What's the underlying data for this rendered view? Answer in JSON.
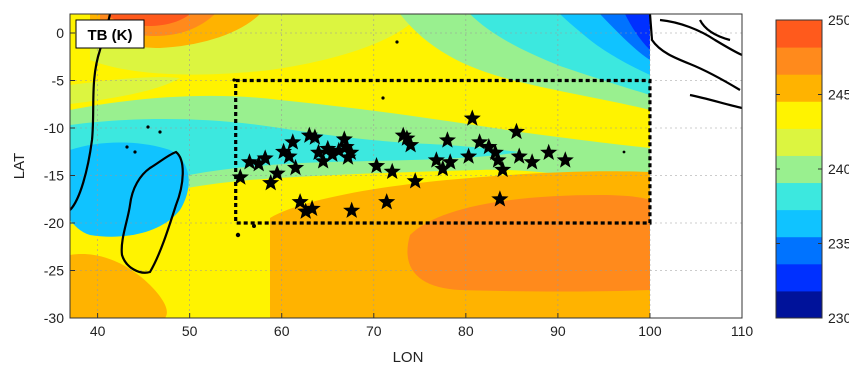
{
  "map": {
    "title_badge": "TB (K)",
    "xlabel": "LON",
    "ylabel": "LAT",
    "xlim": [
      37,
      110
    ],
    "ylim": [
      -30,
      2
    ],
    "x_ticks": [
      40,
      50,
      60,
      70,
      80,
      90,
      100,
      110
    ],
    "y_ticks": [
      0,
      -5,
      -10,
      -15,
      -20,
      -25,
      -30
    ],
    "box_region": {
      "lon": [
        55,
        100
      ],
      "lat": [
        -20,
        -5
      ]
    },
    "data_extent_lon_max": 100,
    "colorbar": {
      "range": [
        230,
        250
      ],
      "ticks": [
        250,
        245,
        240,
        235,
        230
      ],
      "colors": [
        "#00129a",
        "#0030ff",
        "#0073ff",
        "#10c3ff",
        "#3ce8df",
        "#99f08f",
        "#dcf540",
        "#fff300",
        "#ffb300",
        "#ff8a1c",
        "#ff5a1c"
      ]
    },
    "stars": [
      [
        55.5,
        -15.2
      ],
      [
        56.5,
        -13.6
      ],
      [
        57.5,
        -13.8
      ],
      [
        58.2,
        -13.2
      ],
      [
        58.8,
        -15.8
      ],
      [
        59.5,
        -14.8
      ],
      [
        60.2,
        -12.5
      ],
      [
        60.8,
        -13.0
      ],
      [
        61.2,
        -11.5
      ],
      [
        61.5,
        -14.2
      ],
      [
        62.0,
        -17.8
      ],
      [
        62.6,
        -18.8
      ],
      [
        63.0,
        -10.8
      ],
      [
        63.3,
        -18.5
      ],
      [
        63.6,
        -11.0
      ],
      [
        64.0,
        -12.6
      ],
      [
        64.5,
        -13.5
      ],
      [
        65.0,
        -12.2
      ],
      [
        65.5,
        -12.8
      ],
      [
        66.2,
        -12.4
      ],
      [
        66.8,
        -11.2
      ],
      [
        67.0,
        -12.0
      ],
      [
        67.5,
        -12.6
      ],
      [
        67.2,
        -13.1
      ],
      [
        67.6,
        -18.7
      ],
      [
        70.3,
        -14.0
      ],
      [
        71.4,
        -17.8
      ],
      [
        72.0,
        -14.6
      ],
      [
        73.2,
        -10.8
      ],
      [
        73.6,
        -11.1
      ],
      [
        74.0,
        -11.8
      ],
      [
        74.5,
        -15.6
      ],
      [
        76.8,
        -13.4
      ],
      [
        77.5,
        -14.3
      ],
      [
        78.0,
        -11.3
      ],
      [
        78.3,
        -13.6
      ],
      [
        80.3,
        -13.0
      ],
      [
        80.7,
        -9.0
      ],
      [
        81.5,
        -11.5
      ],
      [
        82.5,
        -12.0
      ],
      [
        83.2,
        -12.6
      ],
      [
        83.5,
        -13.4
      ],
      [
        83.7,
        -17.5
      ],
      [
        84.0,
        -14.4
      ],
      [
        85.5,
        -10.4
      ],
      [
        85.8,
        -13.0
      ],
      [
        87.2,
        -13.6
      ],
      [
        89.0,
        -12.6
      ],
      [
        90.8,
        -13.4
      ]
    ]
  }
}
